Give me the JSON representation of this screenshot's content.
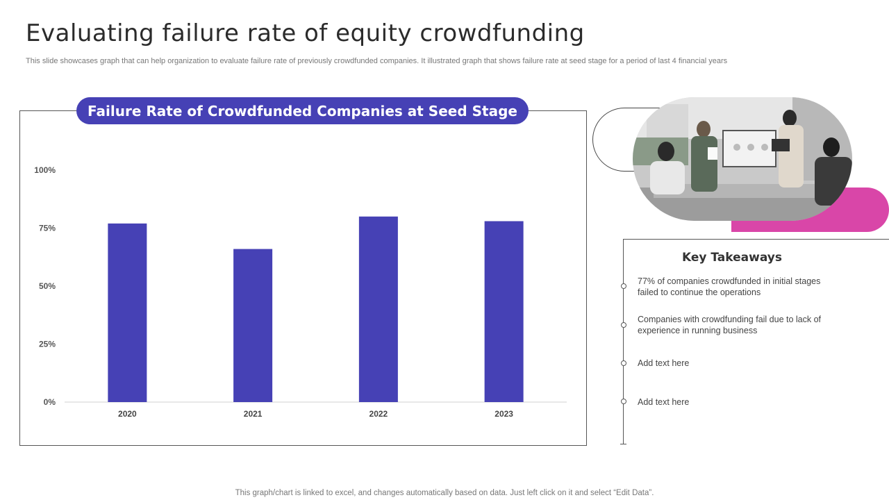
{
  "page": {
    "title": "Evaluating failure rate of equity crowdfunding",
    "subtitle": "This slide showcases graph that can help organization to evaluate failure rate of previously crowdfunded companies. It illustrated graph that shows failure rate at seed stage for a period of last 4 financial years",
    "footer": "This graph/chart is linked to excel,  and changes automatically based on data. Just left click on it and select “Edit Data”."
  },
  "chart_data": {
    "type": "bar",
    "title": "Failure Rate of Crowdfunded Companies at Seed Stage",
    "categories": [
      "2020",
      "2021",
      "2022",
      "2023"
    ],
    "values": [
      77,
      66,
      80,
      78
    ],
    "ylim": [
      0,
      100
    ],
    "yticks": [
      0,
      25,
      50,
      75,
      100
    ],
    "ytick_labels": [
      "0%",
      "25%",
      "50%",
      "75%",
      "100%"
    ],
    "xlabel": "",
    "ylabel": "",
    "grid": false,
    "bar_color": "#4641b5"
  },
  "takeaways": {
    "heading": "Key Takeaways",
    "items": [
      "77% of companies crowdfunded  in initial stages failed to continue the operations",
      "Companies with crowdfunding  fail due to lack of experience in running  business",
      "Add text here",
      "Add text here"
    ]
  },
  "colors": {
    "accent": "#4641b5",
    "pink": "#d946a8"
  }
}
